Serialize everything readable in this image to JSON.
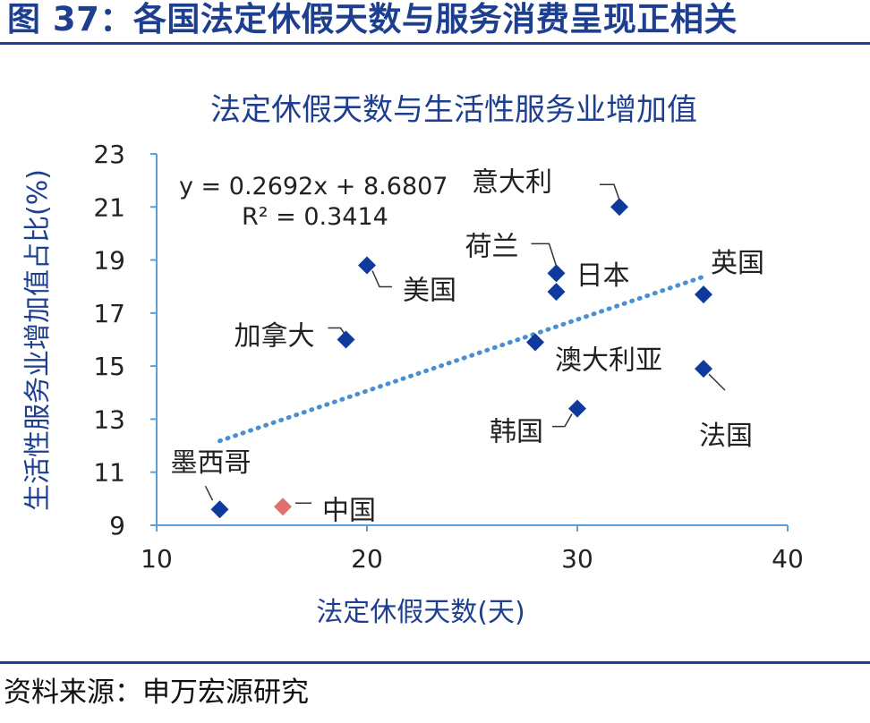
{
  "figure": {
    "title": "图 37：各国法定休假天数与服务消费呈现正相关",
    "source": "资料来源：申万宏源研究"
  },
  "colors": {
    "brand": "#1e3f8f",
    "series": "#0d3a9c",
    "highlight": "#e07070",
    "trendline": "#4a8fd0",
    "axis": "#5a9fd8",
    "text": "#222222"
  },
  "chart_data": {
    "type": "scatter",
    "title": "法定休假天数与生活性服务业增加值",
    "xlabel": "法定休假天数(天)",
    "ylabel": "生活性服务业增加值占比(%)",
    "xlim": [
      10,
      40
    ],
    "ylim": [
      9,
      23
    ],
    "xticks": [
      10,
      20,
      30,
      40
    ],
    "yticks": [
      9,
      11,
      13,
      15,
      17,
      19,
      21,
      23
    ],
    "grid": false,
    "points": [
      {
        "label": "意大利",
        "x": 32,
        "y": 21.0,
        "highlight": false
      },
      {
        "label": "荷兰",
        "x": 29,
        "y": 18.5,
        "highlight": false
      },
      {
        "label": "日本",
        "x": 29,
        "y": 17.8,
        "highlight": false
      },
      {
        "label": "英国",
        "x": 36,
        "y": 17.7,
        "highlight": false
      },
      {
        "label": "美国",
        "x": 20,
        "y": 18.8,
        "highlight": false
      },
      {
        "label": "加拿大",
        "x": 19,
        "y": 16.0,
        "highlight": false
      },
      {
        "label": "澳大利亚",
        "x": 28,
        "y": 15.9,
        "highlight": false
      },
      {
        "label": "法国",
        "x": 36,
        "y": 14.9,
        "highlight": false
      },
      {
        "label": "韩国",
        "x": 30,
        "y": 13.4,
        "highlight": false
      },
      {
        "label": "墨西哥",
        "x": 13,
        "y": 9.6,
        "highlight": false
      },
      {
        "label": "中国",
        "x": 16,
        "y": 9.7,
        "highlight": true
      }
    ],
    "trendline": {
      "slope": 0.2692,
      "intercept": 8.6807,
      "x_range": [
        13,
        36
      ],
      "equation": "y = 0.2692x + 8.6807",
      "r_squared": "R² = 0.3414"
    }
  }
}
